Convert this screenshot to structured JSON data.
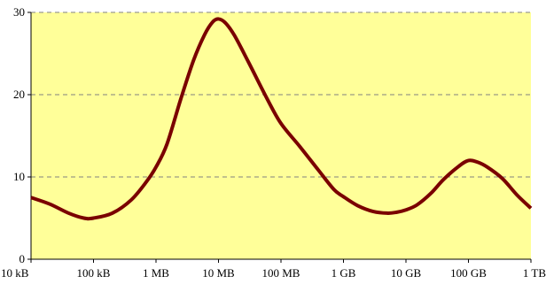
{
  "chart_data": {
    "type": "line",
    "title": "",
    "xlabel": "",
    "ylabel": "",
    "x_scale": "log",
    "x_ticks": [
      {
        "value": "10 kB",
        "label": "10 kB"
      },
      {
        "value": "100 kB",
        "label": "100 kB"
      },
      {
        "value": "1 MB",
        "label": "1 MB"
      },
      {
        "value": "10 MB",
        "label": "10 MB"
      },
      {
        "value": "100 MB",
        "label": "100 MB"
      },
      {
        "value": "1 GB",
        "label": "1 GB"
      },
      {
        "value": "10 GB",
        "label": "10 GB"
      },
      {
        "value": "100 GB",
        "label": "100 GB"
      },
      {
        "value": "1 TB",
        "label": "1 TB"
      }
    ],
    "ylim": [
      0,
      30
    ],
    "y_ticks": [
      0,
      10,
      20,
      30
    ],
    "grid": "horizontal dashed",
    "colors": {
      "plot_background": "#ffff99",
      "line": "#7a0000",
      "grid": "#808080",
      "axis": "#000000"
    },
    "series": [
      {
        "points": [
          {
            "x": "10 kB",
            "y": 7.5
          },
          {
            "x": "20 kB",
            "y": 6.7
          },
          {
            "x": "40 kB",
            "y": 5.6
          },
          {
            "x": "70 kB",
            "y": 5.0
          },
          {
            "x": "100 kB",
            "y": 5.0
          },
          {
            "x": "200 kB",
            "y": 5.6
          },
          {
            "x": "400 kB",
            "y": 7.2
          },
          {
            "x": "700 kB",
            "y": 9.4
          },
          {
            "x": "1 MB",
            "y": 11.2
          },
          {
            "x": "1.5 MB",
            "y": 14.0
          },
          {
            "x": "2.5 MB",
            "y": 19.5
          },
          {
            "x": "4 MB",
            "y": 24.2
          },
          {
            "x": "6 MB",
            "y": 27.3
          },
          {
            "x": "8 MB",
            "y": 28.8
          },
          {
            "x": "10 MB",
            "y": 29.2
          },
          {
            "x": "13 MB",
            "y": 28.7
          },
          {
            "x": "18 MB",
            "y": 27.2
          },
          {
            "x": "30 MB",
            "y": 24.0
          },
          {
            "x": "60 MB",
            "y": 19.5
          },
          {
            "x": "100 MB",
            "y": 16.5
          },
          {
            "x": "200 MB",
            "y": 13.7
          },
          {
            "x": "400 MB",
            "y": 10.8
          },
          {
            "x": "700 MB",
            "y": 8.5
          },
          {
            "x": "1 GB",
            "y": 7.6
          },
          {
            "x": "1.7 GB",
            "y": 6.5
          },
          {
            "x": "3 GB",
            "y": 5.8
          },
          {
            "x": "5 GB",
            "y": 5.6
          },
          {
            "x": "7 GB",
            "y": 5.7
          },
          {
            "x": "10 GB",
            "y": 6.0
          },
          {
            "x": "15 GB",
            "y": 6.6
          },
          {
            "x": "25 GB",
            "y": 8.0
          },
          {
            "x": "40 GB",
            "y": 9.7
          },
          {
            "x": "70 GB",
            "y": 11.3
          },
          {
            "x": "100 GB",
            "y": 12.0
          },
          {
            "x": "140 GB",
            "y": 11.8
          },
          {
            "x": "200 GB",
            "y": 11.2
          },
          {
            "x": "350 GB",
            "y": 9.8
          },
          {
            "x": "600 GB",
            "y": 7.8
          },
          {
            "x": "1 TB",
            "y": 6.2
          }
        ]
      }
    ]
  }
}
